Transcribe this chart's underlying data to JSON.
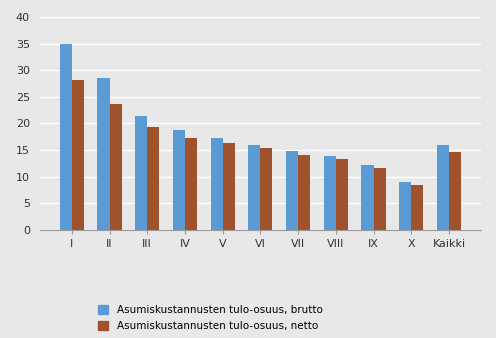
{
  "categories": [
    "I",
    "II",
    "III",
    "IV",
    "V",
    "VI",
    "VII",
    "VIII",
    "IX",
    "X",
    "Kaikki"
  ],
  "brutto": [
    35,
    28.5,
    21.3,
    18.8,
    17.3,
    16.0,
    14.8,
    13.9,
    12.2,
    9.0,
    15.9
  ],
  "netto": [
    28.1,
    23.7,
    19.3,
    17.3,
    16.4,
    15.4,
    14.1,
    13.4,
    11.7,
    8.4,
    14.7
  ],
  "brutto_color": "#5B9BD5",
  "netto_color": "#A0522D",
  "legend_brutto": "Asumiskustannusten tulo-osuus, brutto",
  "legend_netto": "Asumiskustannusten tulo-osuus, netto",
  "ylim": [
    0,
    40
  ],
  "yticks": [
    0,
    5,
    10,
    15,
    20,
    25,
    30,
    35,
    40
  ],
  "bar_width": 0.32,
  "background_color": "#E8E8E8",
  "plot_bg_color": "#E8E8E8",
  "grid_color": "#FFFFFF",
  "spine_color": "#999999"
}
